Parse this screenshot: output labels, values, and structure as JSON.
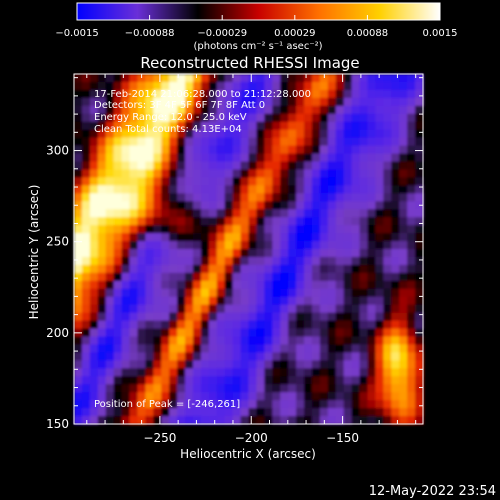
{
  "chart_data": {
    "type": "heatmap",
    "title": "Reconstructed RHESSI Image",
    "xlabel": "Heliocentric X (arcsec)",
    "ylabel": "Heliocentric Y (arcsec)",
    "xlim": [
      -297,
      -106
    ],
    "ylim": [
      150,
      342
    ],
    "xticks": [
      -250,
      -200,
      -150
    ],
    "yticks": [
      150,
      200,
      250,
      300
    ],
    "colorbar": {
      "label": "(photons cm⁻² s⁻¹ asec⁻²)",
      "range": [
        -0.0015,
        0.0015
      ],
      "ticks": [
        "−0.0015",
        "−0.00088",
        "−0.00029",
        "0.00029",
        "0.00088",
        "0.0015"
      ],
      "colors": [
        "#0000ff",
        "#6a2fd8",
        "#000000",
        "#c80000",
        "#ff7000",
        "#ffd000",
        "#ffffff"
      ]
    },
    "annotations": {
      "time": "17-Feb-2014 21:06:28.000 to 21:12:28.000",
      "detectors": "Detectors: 3F 4F 5F 6F 7F 8F Att 0",
      "energy": "Energy Range: 12.0 - 25.0 keV",
      "clean": "Clean    Total counts: 4.13E+04",
      "peak": "Position of Peak = [-246,261]"
    },
    "peak": {
      "x": -246,
      "y": 261
    }
  },
  "footer": {
    "timestamp": "12-May-2022 23:54"
  }
}
